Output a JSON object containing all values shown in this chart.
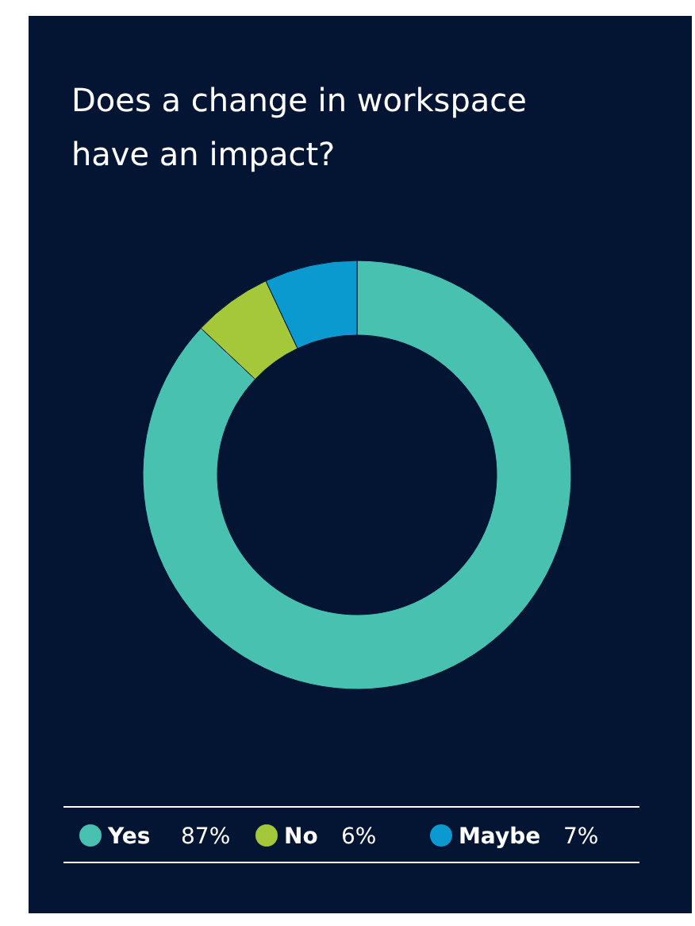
{
  "chart_data": {
    "type": "donut",
    "title": "Does a change in workspace have an impact?",
    "categories": [
      "Yes",
      "No",
      "Maybe"
    ],
    "values": [
      87,
      6,
      7
    ],
    "colors": [
      "#48c1b0",
      "#a4c83a",
      "#0a9ad0"
    ],
    "value_labels": [
      "87%",
      "6%",
      "7%"
    ],
    "legend": "bottom"
  }
}
